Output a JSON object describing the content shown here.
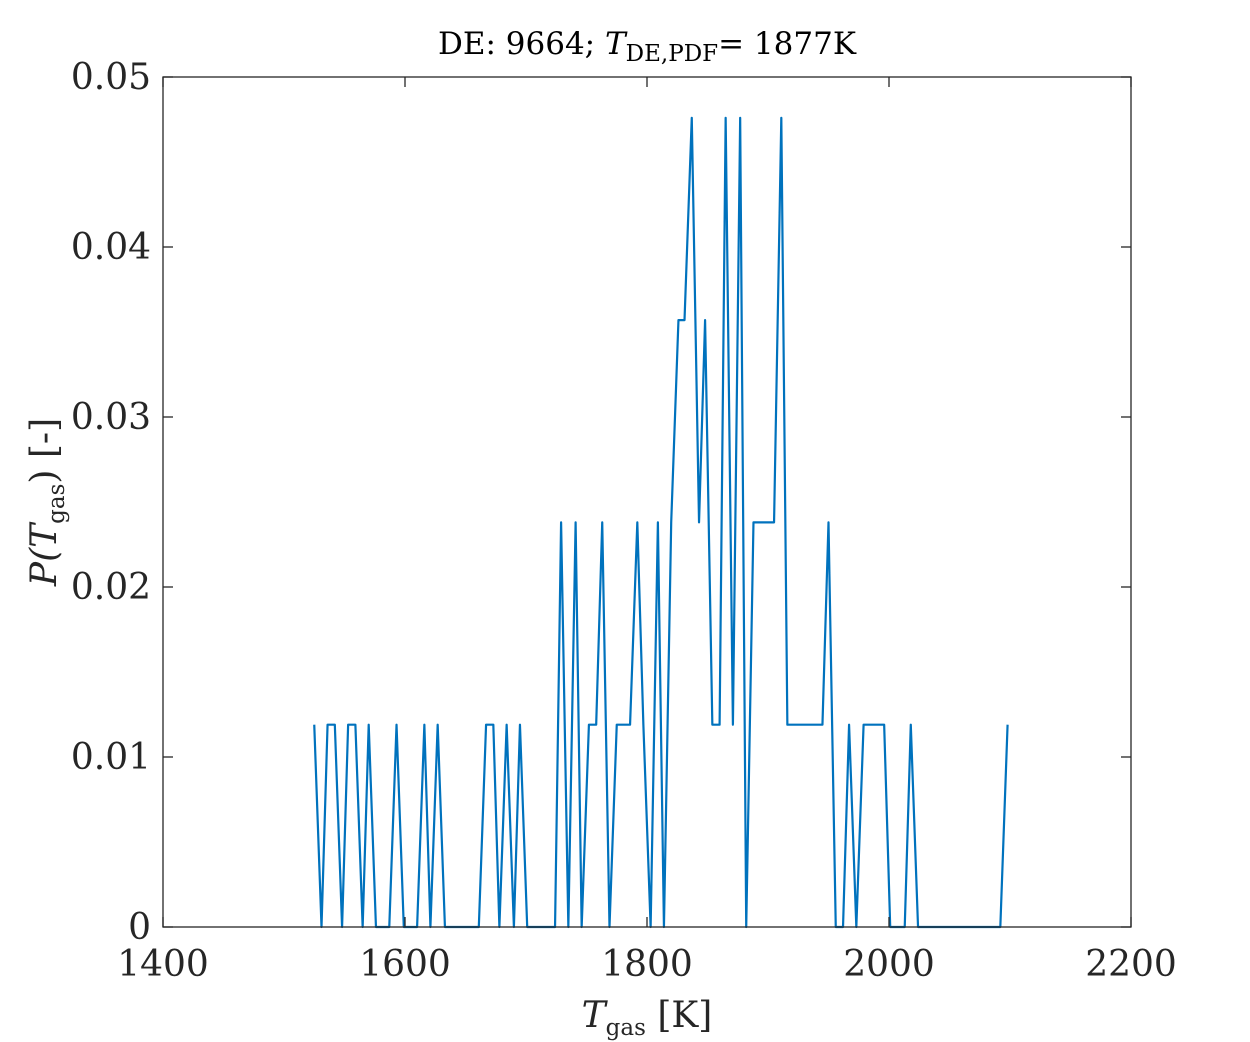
{
  "chart_data": {
    "type": "line",
    "title": {
      "prefix": "DE: 9664; ",
      "var": "T",
      "sub": "DE,PDF",
      "suffix": "= 1877K"
    },
    "xlabel": {
      "var": "T",
      "sub": "gas",
      "unit": " [K]"
    },
    "ylabel": {
      "pre": "P(",
      "var": "T",
      "sub": "gas",
      "post": ") [-]"
    },
    "xlim": [
      1400,
      2200
    ],
    "ylim": [
      0,
      0.05
    ],
    "xticks": [
      1400,
      1600,
      1800,
      2000,
      2200
    ],
    "xtick_labels": [
      "1400",
      "1600",
      "1800",
      "2000",
      "2200"
    ],
    "yticks": [
      0,
      0.01,
      0.02,
      0.03,
      0.04,
      0.05
    ],
    "ytick_labels": [
      "0",
      "0.01",
      "0.02",
      "0.03",
      "0.04",
      "0.05"
    ],
    "grid": false,
    "series": [
      {
        "color": "#0072BD",
        "x": [
          1525,
          1531,
          1536,
          1542,
          1548,
          1553,
          1559,
          1565,
          1570,
          1576,
          1582,
          1587,
          1593,
          1599,
          1604,
          1610,
          1616,
          1621,
          1627,
          1633,
          1638,
          1644,
          1650,
          1656,
          1661,
          1667,
          1673,
          1678,
          1684,
          1690,
          1695,
          1701,
          1707,
          1712,
          1718,
          1724,
          1729,
          1735,
          1741,
          1746,
          1752,
          1758,
          1763,
          1769,
          1775,
          1780,
          1786,
          1792,
          1797,
          1803,
          1809,
          1814,
          1820,
          1826,
          1831,
          1837,
          1843,
          1848,
          1854,
          1860,
          1865,
          1871,
          1877,
          1882,
          1888,
          1894,
          1899,
          1905,
          1911,
          1916,
          1922,
          1928,
          1933,
          1939,
          1945,
          1950,
          1956,
          1962,
          1967,
          1973,
          1979,
          1984,
          1990,
          1996,
          2001,
          2007,
          2013,
          2018,
          2024,
          2030,
          2035,
          2041,
          2047,
          2052,
          2058,
          2064,
          2069,
          2075,
          2081,
          2086,
          2092,
          2098
        ],
        "y": [
          0.0119,
          0,
          0.0119,
          0.0119,
          0,
          0.0119,
          0.0119,
          0,
          0.0119,
          0,
          0,
          0,
          0.0119,
          0,
          0,
          0,
          0.0119,
          0,
          0.0119,
          0,
          0,
          0,
          0,
          0,
          0,
          0.0119,
          0.0119,
          0,
          0.0119,
          0,
          0.0119,
          0,
          0,
          0,
          0,
          0,
          0.0238,
          0,
          0.0238,
          0,
          0.0119,
          0.0119,
          0.0238,
          0,
          0.0119,
          0.0119,
          0.0119,
          0.0238,
          0.0119,
          0,
          0.0238,
          0,
          0.0238,
          0.0357,
          0.0357,
          0.0476,
          0.0238,
          0.0357,
          0.0119,
          0.0119,
          0.0476,
          0.0119,
          0.0476,
          0,
          0.0238,
          0.0238,
          0.0238,
          0.0238,
          0.0476,
          0.0119,
          0.0119,
          0.0119,
          0.0119,
          0.0119,
          0.0119,
          0.0238,
          0,
          0,
          0.0119,
          0,
          0.0119,
          0.0119,
          0.0119,
          0.0119,
          0,
          0,
          0,
          0.0119,
          0,
          0,
          0,
          0,
          0,
          0,
          0,
          0,
          0,
          0,
          0,
          0,
          0,
          0.0119
        ]
      }
    ]
  }
}
